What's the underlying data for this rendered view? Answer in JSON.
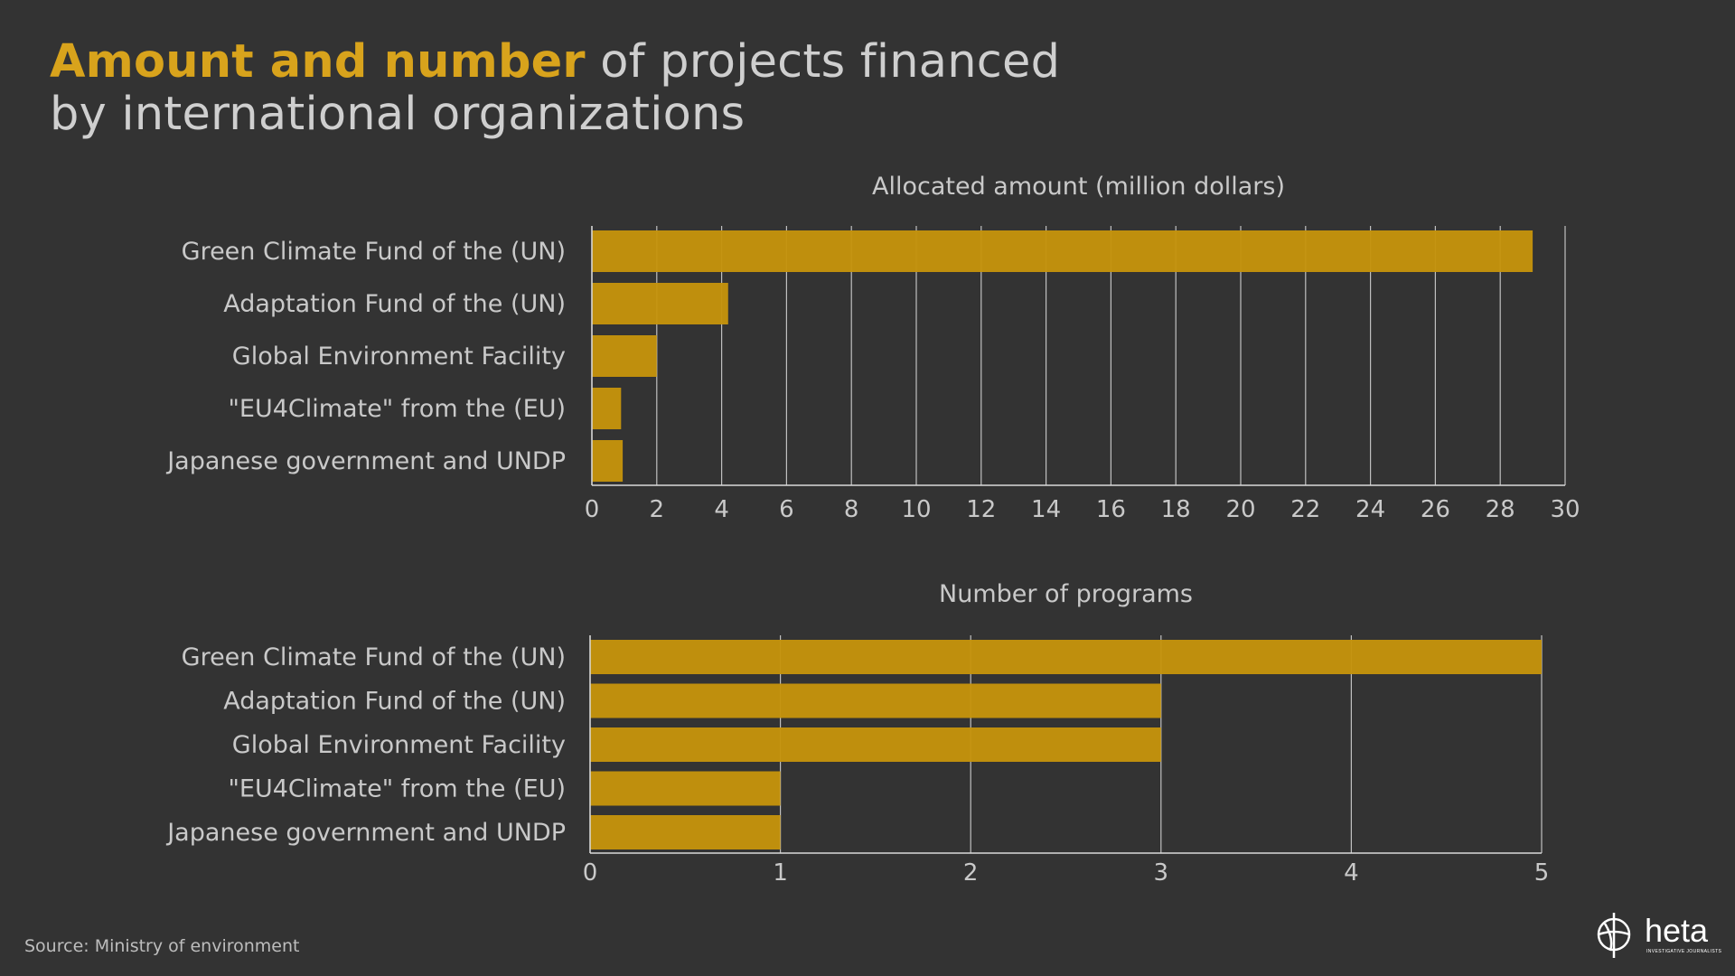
{
  "title": {
    "highlight": "Amount and number",
    "rest_line1": " of projects financed",
    "line2": "by international organizations"
  },
  "colors": {
    "background": "#333333",
    "bar": "#c5930b",
    "highlight": "#d8a31c",
    "grid": "#d9d9d9",
    "text": "#c9c9c9"
  },
  "chart_data": [
    {
      "type": "bar",
      "orientation": "horizontal",
      "title": "Allocated amount (million dollars)",
      "categories": [
        "Green Climate Fund of the (UN)",
        "Adaptation Fund of the (UN)",
        "Global Environment Facility",
        "\"EU4Climate\" from the (EU)",
        "Japanese government and UNDP"
      ],
      "values": [
        29,
        4.2,
        2,
        0.9,
        0.95
      ],
      "xlim": [
        0,
        30
      ],
      "ticks": [
        0,
        2,
        4,
        6,
        8,
        10,
        12,
        14,
        16,
        18,
        20,
        22,
        24,
        26,
        28,
        30
      ],
      "grid": true
    },
    {
      "type": "bar",
      "orientation": "horizontal",
      "title": "Number of programs",
      "categories": [
        "Green Climate Fund of the (UN)",
        "Adaptation Fund of the (UN)",
        "Global Environment Facility",
        "\"EU4Climate\" from the (EU)",
        "Japanese government and UNDP"
      ],
      "values": [
        5,
        3,
        3,
        1,
        1
      ],
      "xlim": [
        0,
        5
      ],
      "ticks": [
        0,
        1,
        2,
        3,
        4,
        5
      ],
      "grid": true
    }
  ],
  "source": "Source: Ministry of environment",
  "logo": {
    "name": "heta",
    "tagline": "INVESTIGATIVE JOURNALISTS"
  }
}
